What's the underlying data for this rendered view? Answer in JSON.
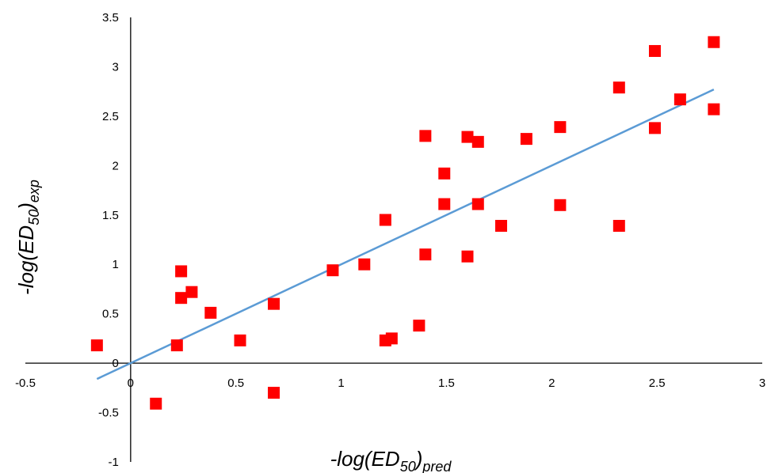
{
  "chart_data": {
    "type": "scatter",
    "xlabel": {
      "prefix": "-log(ED",
      "sub1": "50",
      "mid": ")",
      "sub2": "pred"
    },
    "ylabel": {
      "prefix": "-log(ED",
      "sub1": "50",
      "mid": ")",
      "sub2": "exp"
    },
    "xlim": [
      -0.5,
      3
    ],
    "ylim": [
      -1,
      3.5
    ],
    "xticks": [
      "-0.5",
      "0",
      "0.5",
      "1",
      "1.5",
      "2",
      "2.5",
      "3"
    ],
    "yticks": [
      "-1",
      "-0.5",
      "0",
      "0.5",
      "1",
      "1.5",
      "2",
      "2.5",
      "3",
      "3.5"
    ],
    "grid": false,
    "marker_color": "#ff0000",
    "line_color": "#5b9bd5",
    "points": [
      [
        -0.16,
        0.18
      ],
      [
        0.12,
        -0.41
      ],
      [
        0.22,
        0.18
      ],
      [
        0.24,
        0.93
      ],
      [
        0.24,
        0.66
      ],
      [
        0.29,
        0.72
      ],
      [
        0.38,
        0.51
      ],
      [
        0.52,
        0.23
      ],
      [
        0.68,
        0.6
      ],
      [
        0.68,
        -0.3
      ],
      [
        0.96,
        0.94
      ],
      [
        1.11,
        1.0
      ],
      [
        1.21,
        1.45
      ],
      [
        1.21,
        0.23
      ],
      [
        1.24,
        0.25
      ],
      [
        1.37,
        0.38
      ],
      [
        1.4,
        2.3
      ],
      [
        1.4,
        1.1
      ],
      [
        1.49,
        1.92
      ],
      [
        1.49,
        1.61
      ],
      [
        1.6,
        2.29
      ],
      [
        1.6,
        1.08
      ],
      [
        1.65,
        2.24
      ],
      [
        1.65,
        1.61
      ],
      [
        1.76,
        1.39
      ],
      [
        1.88,
        2.27
      ],
      [
        2.04,
        2.39
      ],
      [
        2.04,
        1.6
      ],
      [
        2.32,
        2.79
      ],
      [
        2.32,
        1.39
      ],
      [
        2.49,
        3.16
      ],
      [
        2.49,
        2.38
      ],
      [
        2.61,
        2.67
      ],
      [
        2.77,
        3.25
      ],
      [
        2.77,
        2.57
      ]
    ],
    "trendline": {
      "x": [
        -0.16,
        2.77
      ],
      "y": [
        -0.16,
        2.77
      ]
    }
  }
}
